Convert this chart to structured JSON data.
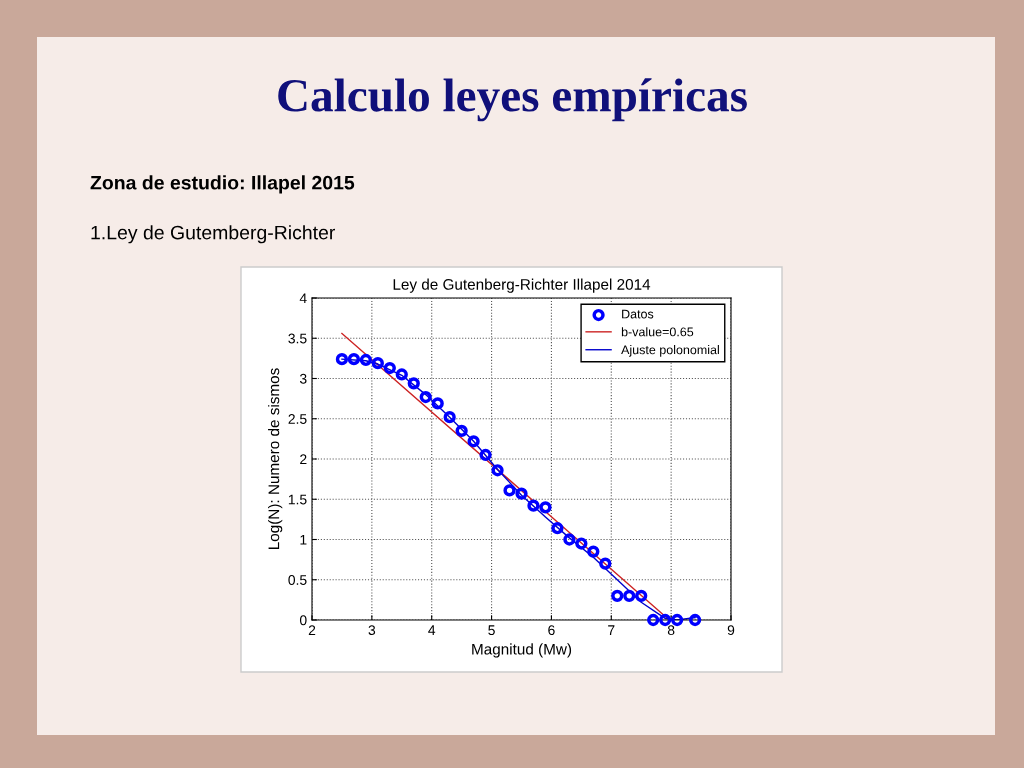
{
  "chart_data": {
    "type": "scatter",
    "title": "Ley de Gutenberg-Richter Illapel 2014",
    "xlabel": "Magnitud (Mw)",
    "ylabel": "Log(N): Numero de sismos",
    "annotations": [
      "Calculo leyes empíricas",
      "Zona de estudio: Illapel 2015",
      "1.Ley de Gutemberg-Richter"
    ],
    "series": [
      {
        "name": "Datos",
        "color": "#0000ff",
        "marker": "circle",
        "x": [
          2.5,
          2.7,
          2.9,
          3.1,
          3.3,
          3.5,
          3.7,
          3.9,
          4.1,
          4.3,
          4.5,
          4.7,
          4.9,
          5.1,
          5.3,
          5.5,
          5.7,
          5.9,
          6.1,
          6.3,
          6.5,
          6.7,
          6.9,
          7.1,
          7.3,
          7.5,
          7.7,
          7.9,
          8.1,
          8.4
        ],
        "values": [
          3.24,
          3.24,
          3.23,
          3.19,
          3.13,
          3.05,
          2.94,
          2.77,
          2.69,
          2.52,
          2.35,
          2.22,
          2.05,
          1.86,
          1.61,
          1.57,
          1.42,
          1.4,
          1.14,
          1.0,
          0.95,
          0.85,
          0.7,
          0.3,
          0.3,
          0.3,
          0.0,
          0.0,
          0.0,
          0.0
        ]
      },
      {
        "name": "b-value=0.65",
        "type": "line",
        "color": "#cc2222",
        "line_style": "solid",
        "x": [
          2.5,
          7.97
        ],
        "values": [
          3.56,
          0.0
        ]
      },
      {
        "name": "Ajuste polonomial",
        "type": "line",
        "color": "#0000cc",
        "line_style": "solid",
        "x": [
          2.5,
          2.9,
          3.1,
          3.5,
          3.9,
          4.3,
          4.7,
          5.1,
          5.5,
          5.9,
          6.3,
          6.7,
          7.1,
          7.5,
          7.9,
          8.1,
          8.4
        ],
        "values": [
          3.24,
          3.22,
          3.18,
          3.04,
          2.8,
          2.52,
          2.22,
          1.87,
          1.55,
          1.28,
          1.02,
          0.78,
          0.5,
          0.22,
          0.02,
          0.0,
          0.03
        ]
      }
    ],
    "xlim": [
      2,
      9
    ],
    "xticks": [
      2,
      3,
      4,
      5,
      6,
      7,
      8,
      9
    ],
    "ylim": [
      0,
      4
    ],
    "yticks": [
      0,
      0.5,
      1,
      1.5,
      2,
      2.5,
      3,
      3.5,
      4
    ],
    "grid": true,
    "legend": "top right"
  }
}
